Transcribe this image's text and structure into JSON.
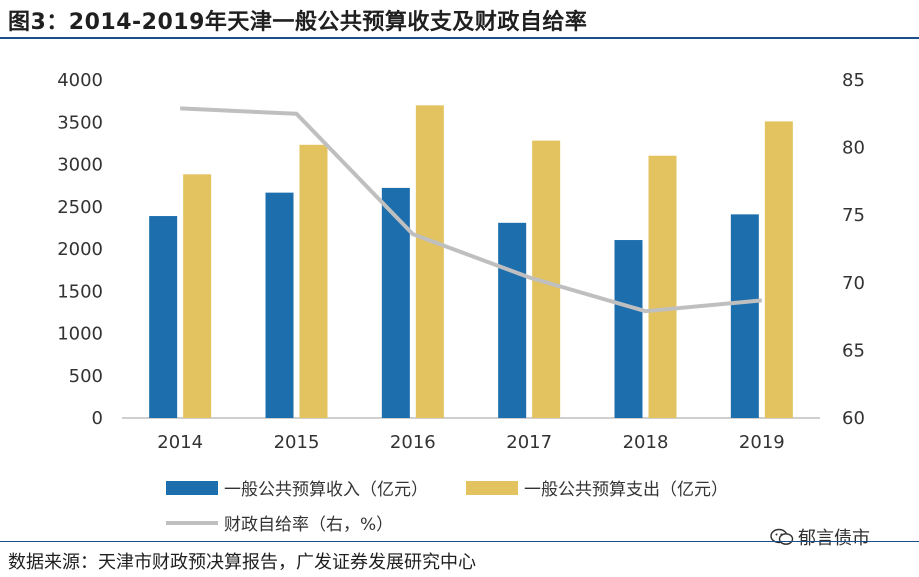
{
  "figure": {
    "title": "图3：2014-2019年天津一般公共预算收支及财政自给率",
    "source": "数据来源：天津市财政预决算报告，广发证券发展研究中心",
    "watermark": "郁言债市"
  },
  "colors": {
    "revenue": "#1c6ead",
    "expenditure": "#e3c35f",
    "ratio": "#bfbfbf",
    "rule": "#1a4f8a",
    "axis": "#bfbfbf"
  },
  "chart_data": {
    "type": "bar+line",
    "categories": [
      "2014",
      "2015",
      "2016",
      "2017",
      "2018",
      "2019"
    ],
    "series": [
      {
        "name": "一般公共预算收入（亿元）",
        "type": "bar",
        "axis": "left",
        "values": [
          2390,
          2667,
          2723,
          2310,
          2106,
          2410
        ]
      },
      {
        "name": "一般公共预算支出（亿元）",
        "type": "bar",
        "axis": "left",
        "values": [
          2884,
          3233,
          3700,
          3283,
          3104,
          3510
        ]
      },
      {
        "name": "财政自给率（右，%）",
        "type": "line",
        "axis": "right",
        "values": [
          82.9,
          82.5,
          73.6,
          70.4,
          67.9,
          68.7
        ]
      }
    ],
    "y_left": {
      "min": 0,
      "max": 4000,
      "ticks": [
        0,
        500,
        1000,
        1500,
        2000,
        2500,
        3000,
        3500,
        4000
      ]
    },
    "y_right": {
      "min": 60,
      "max": 85,
      "ticks": [
        60,
        65,
        70,
        75,
        80,
        85
      ]
    },
    "legend_position": "bottom",
    "grid": false
  }
}
